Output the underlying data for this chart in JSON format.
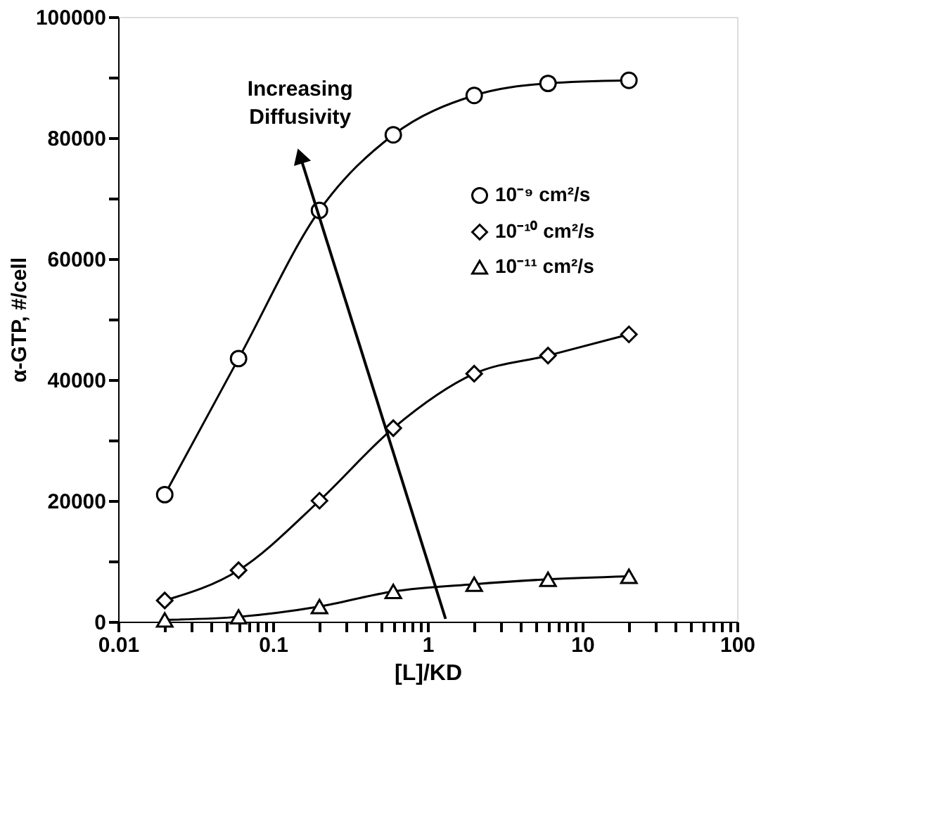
{
  "chart_data": {
    "type": "line",
    "xlabel": "[L]/KD",
    "ylabel": "α-GTP,  #/cell",
    "x": [
      0.02,
      0.06,
      0.2,
      0.6,
      2,
      6,
      20
    ],
    "series": [
      {
        "name": "10⁻⁹ cm²/s",
        "color": "#000000",
        "marker": "circle",
        "values": [
          21000,
          43500,
          68000,
          80500,
          87000,
          89000,
          89500
        ]
      },
      {
        "name": "10⁻¹⁰ cm²/s",
        "color": "#000000",
        "marker": "diamond",
        "values": [
          3500,
          8500,
          20000,
          32000,
          41000,
          44000,
          47500
        ]
      },
      {
        "name": "10⁻¹¹ cm²/s",
        "color": "#000000",
        "marker": "triangle",
        "values": [
          300,
          800,
          2500,
          5000,
          6200,
          7000,
          7500
        ]
      }
    ],
    "log": "x",
    "xlim": [
      0.01,
      100
    ],
    "xticks": [
      0.01,
      {
        "value": 0.02,
        "label": null
      },
      {
        "value": 0.03,
        "label": null
      },
      {
        "value": 0.04,
        "label": null
      },
      {
        "value": 0.05,
        "label": null
      },
      {
        "value": 0.06,
        "label": null
      },
      {
        "value": 0.07,
        "label": null
      },
      {
        "value": 0.08,
        "label": null
      },
      {
        "value": 0.09,
        "label": null
      },
      0.1,
      {
        "value": 0.2,
        "label": null
      },
      {
        "value": 0.3,
        "label": null
      },
      {
        "value": 0.4,
        "label": null
      },
      {
        "value": 0.5,
        "label": null
      },
      {
        "value": 0.6,
        "label": null
      },
      {
        "value": 0.7,
        "label": null
      },
      {
        "value": 0.8,
        "label": null
      },
      {
        "value": 0.9,
        "label": null
      },
      1,
      {
        "value": 2,
        "label": null
      },
      {
        "value": 3,
        "label": null
      },
      {
        "value": 4,
        "label": null
      },
      {
        "value": 5,
        "label": null
      },
      {
        "value": 6,
        "label": null
      },
      {
        "value": 7,
        "label": null
      },
      {
        "value": 8,
        "label": null
      },
      {
        "value": 9,
        "label": null
      },
      10,
      {
        "value": 20,
        "label": null
      },
      {
        "value": 30,
        "label": null
      },
      {
        "value": 40,
        "label": null
      },
      {
        "value": 50,
        "label": null
      },
      {
        "value": 60,
        "label": null
      },
      {
        "value": 70,
        "label": null
      },
      {
        "value": 80,
        "label": null
      },
      {
        "value": 90,
        "label": null
      },
      100
    ],
    "ylim": [
      0,
      100000
    ],
    "yticks": [
      0,
      {
        "value": 10000,
        "label": null
      },
      20000,
      {
        "value": 30000,
        "label": null
      },
      40000,
      {
        "value": 50000,
        "label": null
      },
      60000,
      {
        "value": 70000,
        "label": null
      },
      80000,
      {
        "value": 90000,
        "label": null
      },
      100000
    ],
    "grid": false,
    "legend": "top right",
    "line_style": "solid",
    "annotations": [
      {
        "text": "Increasing Diffusivity",
        "x": 0.15,
        "y": 77000
      }
    ]
  }
}
